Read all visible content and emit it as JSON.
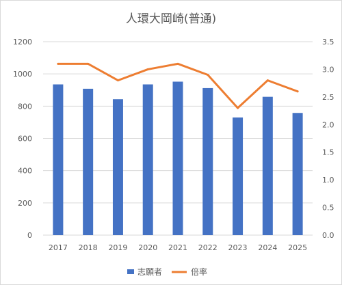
{
  "chart_data": {
    "type": "bar",
    "title": "人環大岡崎(普通)",
    "categories": [
      "2017",
      "2018",
      "2019",
      "2020",
      "2021",
      "2022",
      "2023",
      "2024",
      "2025"
    ],
    "series": [
      {
        "name": "志願者",
        "type": "bar",
        "axis": "left",
        "color": "#4472c4",
        "values": [
          935,
          908,
          843,
          935,
          952,
          912,
          730,
          858,
          758
        ]
      },
      {
        "name": "倍率",
        "type": "line",
        "axis": "right",
        "color": "#ed7d31",
        "values": [
          3.1,
          3.1,
          2.8,
          3.0,
          3.1,
          2.9,
          2.3,
          2.8,
          2.6
        ]
      }
    ],
    "y_left": {
      "min": 0,
      "max": 1200,
      "ticks": [
        "0",
        "200",
        "400",
        "600",
        "800",
        "1000",
        "1200"
      ]
    },
    "y_right": {
      "min": 0,
      "max": 3.5,
      "ticks": [
        "0.0",
        "0.5",
        "1.0",
        "1.5",
        "2.0",
        "2.5",
        "3.0",
        "3.5"
      ]
    },
    "grid": true,
    "legend_position": "bottom"
  }
}
